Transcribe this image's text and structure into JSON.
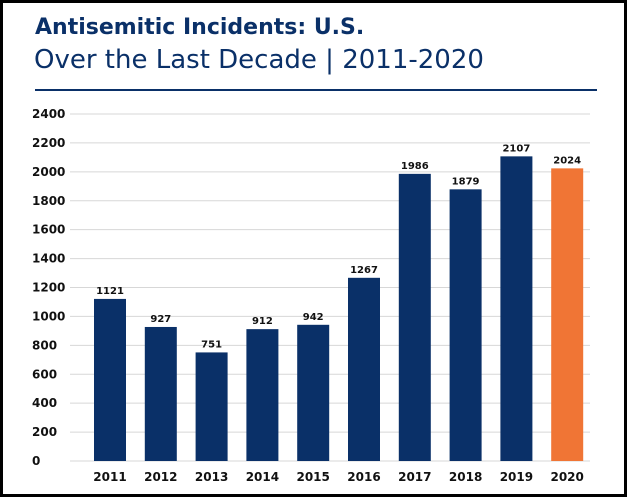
{
  "header": {
    "title": "Antisemitic Incidents: U.S.",
    "subtitle": "Over the Last Decade | 2011-2020"
  },
  "colors": {
    "primary": "#0a3068",
    "highlight": "#f07535",
    "grid": "#d7d7d7",
    "text": "#111111"
  },
  "chart_data": {
    "type": "bar",
    "title": "Antisemitic Incidents: U.S.",
    "subtitle": "Over the Last Decade | 2011-2020",
    "xlabel": "",
    "ylabel": "",
    "categories": [
      "2011",
      "2012",
      "2013",
      "2014",
      "2015",
      "2016",
      "2017",
      "2018",
      "2019",
      "2020"
    ],
    "values": [
      1121,
      927,
      751,
      912,
      942,
      1267,
      1986,
      1879,
      2107,
      2024
    ],
    "data_labels": [
      "1121",
      "927",
      "751",
      "912",
      "942",
      "1267",
      "1986",
      "1879",
      "2107",
      "2024"
    ],
    "highlighted_category": "2020",
    "ylim": [
      0,
      2400
    ],
    "yticks": [
      0,
      200,
      400,
      600,
      800,
      1000,
      1200,
      1400,
      1600,
      1800,
      2000,
      2200,
      2400
    ],
    "grid": true,
    "legend": "none"
  }
}
